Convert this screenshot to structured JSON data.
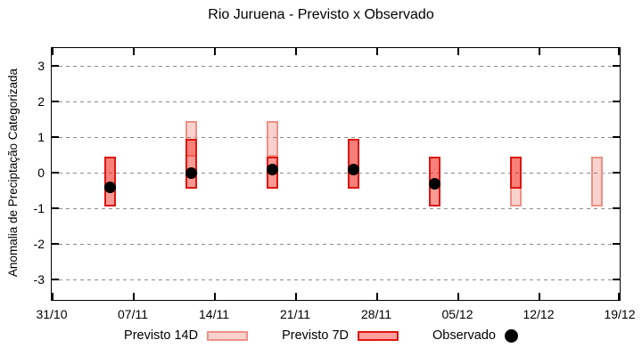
{
  "title": "Rio Juruena - Previsto x Observado",
  "chart_data": {
    "type": "range-bar",
    "title": "Rio Juruena - Previsto x Observado",
    "ylabel": "Anomalia de Preciptação Categorizada",
    "ylim": [
      -3.5,
      3.5
    ],
    "yticks": [
      3,
      2,
      1,
      0,
      -1,
      -2,
      -3
    ],
    "grid": "horizontal-dotted",
    "x_axis": {
      "tick_labels": [
        "31/10",
        "07/11",
        "14/11",
        "21/11",
        "28/11",
        "05/12",
        "12/12",
        "19/12"
      ],
      "tick_days": [
        0,
        7,
        14,
        21,
        28,
        35,
        42,
        49
      ],
      "total_days": 49
    },
    "legend_position": "bottom",
    "series": [
      {
        "name": "Previsto 14D",
        "type": "range",
        "fill_rgba": "rgba(235,75,55,0.25)",
        "border": "#ee9086",
        "data": [
          {
            "date": "05/11",
            "day": 5,
            "low": -0.45,
            "high": 0.45
          },
          {
            "date": "12/11",
            "day": 12,
            "low": 0.45,
            "high": 1.45
          },
          {
            "date": "19/11",
            "day": 19,
            "low": 0.45,
            "high": 1.45
          },
          {
            "date": "26/11",
            "day": 26,
            "low": -0.45,
            "high": 0.95
          },
          {
            "date": "03/12",
            "day": 33,
            "low": -0.45,
            "high": 0.45
          },
          {
            "date": "10/12",
            "day": 40,
            "low": -0.95,
            "high": 0.45
          },
          {
            "date": "17/12",
            "day": 47,
            "low": -0.95,
            "high": 0.45
          }
        ]
      },
      {
        "name": "Previsto 7D",
        "type": "range",
        "fill_rgba": "rgba(244,31,19,0.45)",
        "border": "#dc1712",
        "data": [
          {
            "date": "05/11",
            "day": 5,
            "low": -0.95,
            "high": 0.45
          },
          {
            "date": "12/11",
            "day": 12,
            "low": -0.45,
            "high": 0.95
          },
          {
            "date": "19/11",
            "day": 19,
            "low": -0.45,
            "high": 0.45
          },
          {
            "date": "26/11",
            "day": 26,
            "low": -0.45,
            "high": 0.95
          },
          {
            "date": "03/12",
            "day": 33,
            "low": -0.95,
            "high": 0.45
          },
          {
            "date": "10/12",
            "day": 40,
            "low": -0.45,
            "high": 0.45
          }
        ]
      },
      {
        "name": "Observado",
        "type": "point",
        "color": "#000000",
        "data": [
          {
            "date": "05/11",
            "day": 5,
            "value": -0.4
          },
          {
            "date": "12/11",
            "day": 12,
            "value": 0.0
          },
          {
            "date": "19/11",
            "day": 19,
            "value": 0.1
          },
          {
            "date": "26/11",
            "day": 26,
            "value": 0.1
          },
          {
            "date": "03/12",
            "day": 33,
            "value": -0.3
          }
        ]
      }
    ]
  },
  "legend": {
    "items": [
      {
        "label": "Previsto 14D"
      },
      {
        "label": "Previsto 7D"
      },
      {
        "label": "Observado"
      }
    ]
  }
}
